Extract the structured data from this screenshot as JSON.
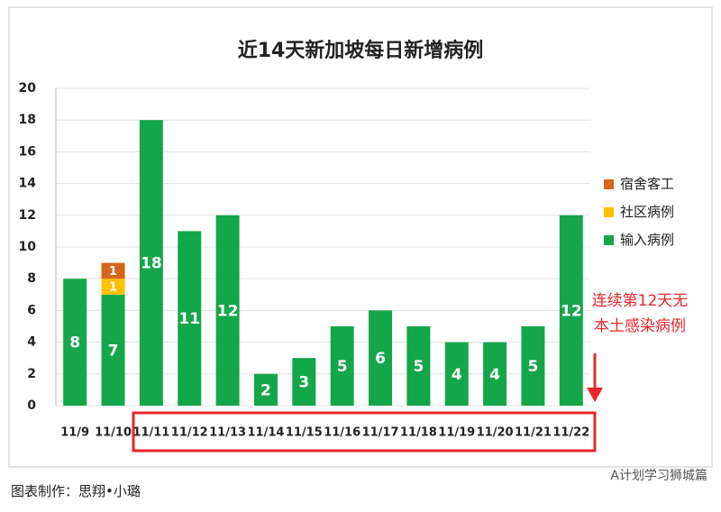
{
  "chart_data": {
    "type": "bar",
    "stacked": true,
    "title": "近14天新加坡每日新增病例",
    "categories": [
      "11/9",
      "11/10",
      "11/11",
      "11/12",
      "11/13",
      "11/14",
      "11/15",
      "11/16",
      "11/17",
      "11/18",
      "11/19",
      "11/20",
      "11/21",
      "11/22"
    ],
    "series": [
      {
        "name": "输入病例",
        "color": "#14a64b",
        "values": [
          8,
          7,
          18,
          11,
          12,
          2,
          3,
          5,
          6,
          5,
          4,
          4,
          5,
          12
        ]
      },
      {
        "name": "社区病例",
        "color": "#ffc000",
        "values": [
          0,
          1,
          0,
          0,
          0,
          0,
          0,
          0,
          0,
          0,
          0,
          0,
          0,
          0
        ]
      },
      {
        "name": "宿舍客工",
        "color": "#d8661a",
        "values": [
          0,
          1,
          0,
          0,
          0,
          0,
          0,
          0,
          0,
          0,
          0,
          0,
          0,
          0
        ]
      }
    ],
    "ylim": [
      0,
      20
    ],
    "yticks": [
      0,
      2,
      4,
      6,
      8,
      10,
      12,
      14,
      16,
      18,
      20
    ],
    "grid": true,
    "annotation": [
      "连续第12天无",
      "本土感染病例"
    ],
    "footer": "图表制作：思翔•小璐",
    "watermark": "A计划学习狮城篇"
  }
}
